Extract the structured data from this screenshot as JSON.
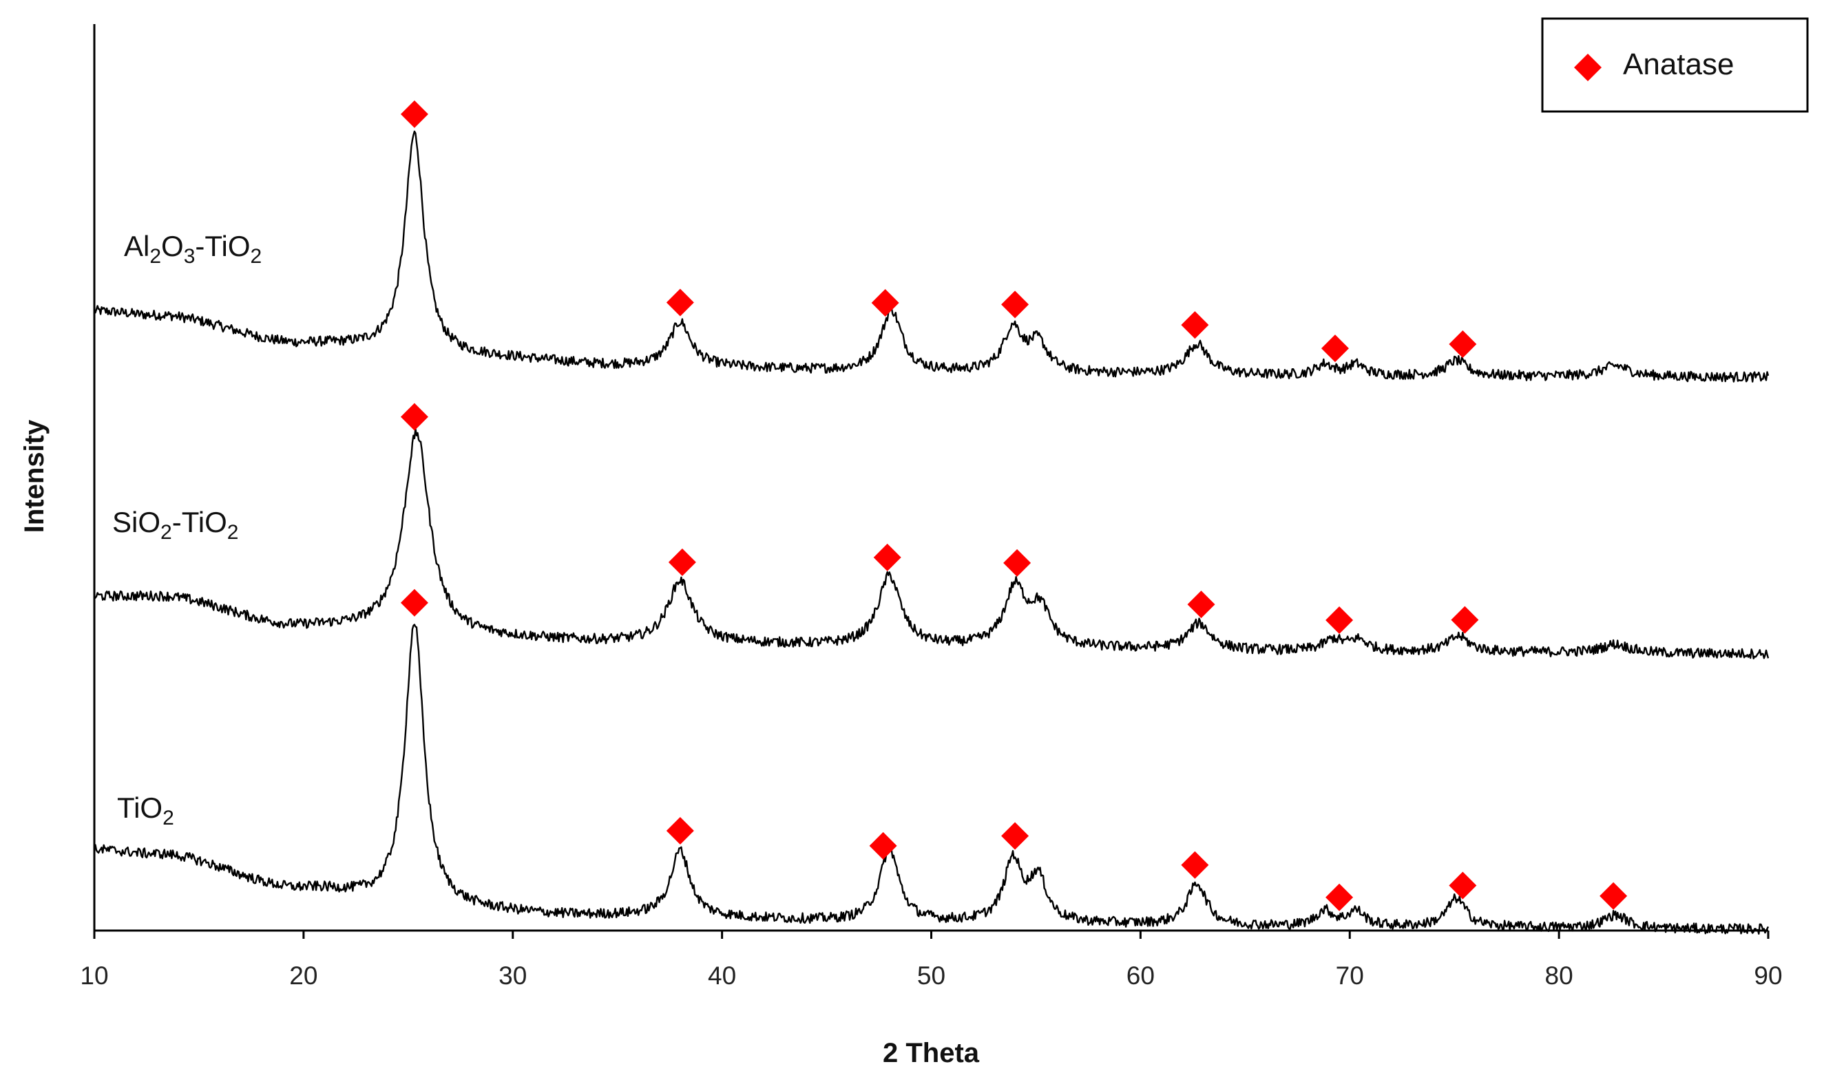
{
  "chart_data": {
    "type": "line",
    "title": "",
    "xlabel": "2 Theta",
    "ylabel": "Intensity",
    "xlim": [
      10,
      90
    ],
    "xticks": [
      10,
      20,
      30,
      40,
      50,
      60,
      70,
      80,
      90
    ],
    "y_ticks_shown": false,
    "grid": false,
    "legend": {
      "position": "top-right",
      "entries": [
        {
          "label": "Anatase",
          "marker": "diamond",
          "color": "#ff0000"
        }
      ]
    },
    "series": [
      {
        "name": "Al2O3-TiO2",
        "label_parts": [
          [
            "Al",
            ""
          ],
          [
            "2",
            "sub"
          ],
          [
            "O",
            ""
          ],
          [
            "3",
            "sub"
          ],
          [
            "-TiO",
            ""
          ],
          [
            "2",
            "sub"
          ]
        ],
        "order_from_top": 1,
        "baseline": [
          [
            10,
            0.3
          ],
          [
            13,
            0.28
          ],
          [
            20,
            0.15
          ],
          [
            28,
            0.09
          ],
          [
            36,
            0.05
          ],
          [
            50,
            0.02
          ],
          [
            70,
            0.005
          ],
          [
            90,
            0.0
          ]
        ],
        "peaks": [
          {
            "x": 25.3,
            "h": 1.0,
            "w": 0.55
          },
          {
            "x": 38.0,
            "h": 0.2,
            "w": 0.6
          },
          {
            "x": 48.1,
            "h": 0.28,
            "w": 0.6
          },
          {
            "x": 53.9,
            "h": 0.2,
            "w": 0.55
          },
          {
            "x": 55.1,
            "h": 0.13,
            "w": 0.55
          },
          {
            "x": 62.7,
            "h": 0.14,
            "w": 0.65
          },
          {
            "x": 68.8,
            "h": 0.05,
            "w": 0.5
          },
          {
            "x": 70.3,
            "h": 0.05,
            "w": 0.5
          },
          {
            "x": 75.1,
            "h": 0.07,
            "w": 0.6
          },
          {
            "x": 82.7,
            "h": 0.05,
            "w": 0.8
          }
        ],
        "anatase_markers": [
          25.3,
          38.0,
          47.8,
          54.0,
          62.6,
          69.3,
          75.4
        ]
      },
      {
        "name": "SiO2-TiO2",
        "label_parts": [
          [
            "SiO",
            ""
          ],
          [
            "2",
            "sub"
          ],
          [
            "-TiO",
            ""
          ],
          [
            "2",
            "sub"
          ]
        ],
        "order_from_top": 2,
        "baseline": [
          [
            10,
            0.26
          ],
          [
            13,
            0.26
          ],
          [
            20,
            0.12
          ],
          [
            28,
            0.07
          ],
          [
            36,
            0.05
          ],
          [
            50,
            0.03
          ],
          [
            70,
            0.01
          ],
          [
            90,
            0.0
          ]
        ],
        "peaks": [
          {
            "x": 25.4,
            "h": 0.92,
            "w": 0.75
          },
          {
            "x": 38.0,
            "h": 0.28,
            "w": 0.7
          },
          {
            "x": 48.0,
            "h": 0.32,
            "w": 0.65
          },
          {
            "x": 54.0,
            "h": 0.26,
            "w": 0.6
          },
          {
            "x": 55.2,
            "h": 0.17,
            "w": 0.6
          },
          {
            "x": 62.8,
            "h": 0.12,
            "w": 0.65
          },
          {
            "x": 69.2,
            "h": 0.05,
            "w": 0.55
          },
          {
            "x": 70.4,
            "h": 0.05,
            "w": 0.55
          },
          {
            "x": 75.2,
            "h": 0.07,
            "w": 0.6
          },
          {
            "x": 82.7,
            "h": 0.04,
            "w": 0.8
          }
        ],
        "anatase_markers": [
          25.3,
          38.1,
          47.9,
          54.1,
          62.9,
          69.5,
          75.5
        ]
      },
      {
        "name": "TiO2",
        "label_parts": [
          [
            "TiO",
            ""
          ],
          [
            "2",
            "sub"
          ]
        ],
        "order_from_top": 3,
        "baseline": [
          [
            10,
            0.36
          ],
          [
            13,
            0.34
          ],
          [
            20,
            0.18
          ],
          [
            26,
            0.09
          ],
          [
            34,
            0.06
          ],
          [
            50,
            0.03
          ],
          [
            70,
            0.01
          ],
          [
            90,
            0.0
          ]
        ],
        "peaks": [
          {
            "x": 25.3,
            "h": 1.3,
            "w": 0.55
          },
          {
            "x": 38.0,
            "h": 0.3,
            "w": 0.55
          },
          {
            "x": 48.0,
            "h": 0.33,
            "w": 0.55
          },
          {
            "x": 53.9,
            "h": 0.28,
            "w": 0.5
          },
          {
            "x": 55.1,
            "h": 0.2,
            "w": 0.5
          },
          {
            "x": 62.7,
            "h": 0.19,
            "w": 0.55
          },
          {
            "x": 68.8,
            "h": 0.07,
            "w": 0.5
          },
          {
            "x": 70.3,
            "h": 0.07,
            "w": 0.5
          },
          {
            "x": 75.1,
            "h": 0.13,
            "w": 0.55
          },
          {
            "x": 82.7,
            "h": 0.06,
            "w": 0.7
          }
        ],
        "anatase_markers": [
          25.3,
          38.0,
          47.7,
          54.0,
          62.6,
          69.5,
          75.4,
          82.6
        ]
      }
    ]
  }
}
